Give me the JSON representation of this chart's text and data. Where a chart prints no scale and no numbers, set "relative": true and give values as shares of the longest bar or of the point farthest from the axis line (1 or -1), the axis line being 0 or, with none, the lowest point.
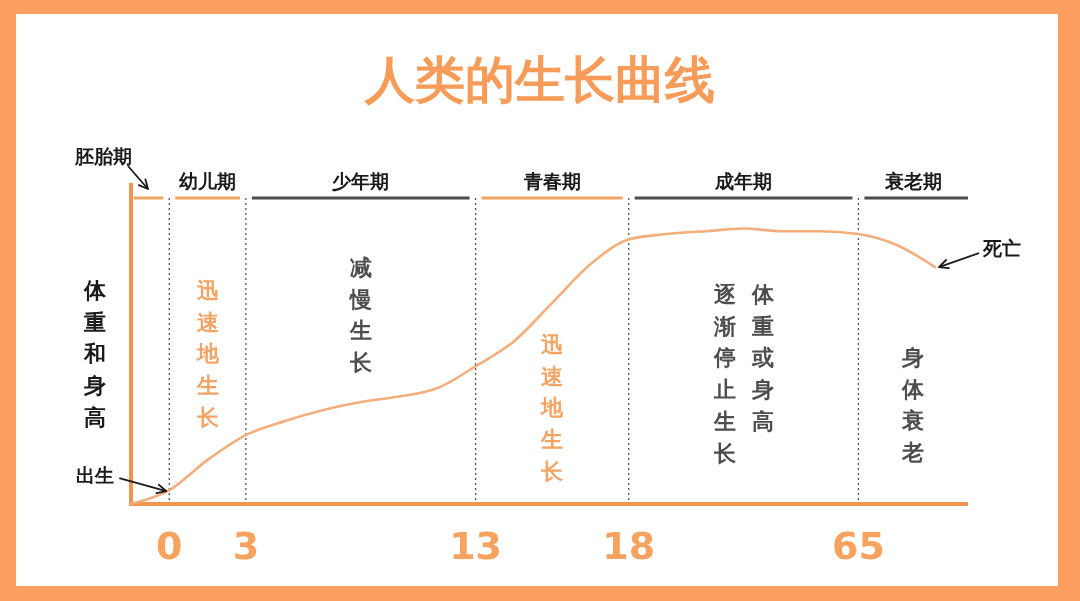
{
  "chart_data": {
    "type": "line",
    "title": "人类的生长曲线",
    "ylabel": "体重和身高",
    "relative": true,
    "categories": [
      null,
      "0",
      null,
      "3",
      null,
      null,
      null,
      null,
      null,
      "13",
      null,
      null,
      null,
      "18",
      null,
      null,
      null,
      null,
      null,
      "65",
      null,
      null
    ],
    "series": [
      {
        "color": "#f3ae7c",
        "values": [
          0,
          0.05,
          0.16,
          0.25,
          0.3,
          0.34,
          0.37,
          0.39,
          0.42,
          0.5,
          0.59,
          0.73,
          0.87,
          0.96,
          0.98,
          0.99,
          1,
          0.99,
          0.99,
          0.98,
          0.94,
          0.86
        ]
      }
    ],
    "ref_lines": [
      {
        "axis": "x",
        "value": "0",
        "color": "#555555",
        "line_style": "dotted"
      },
      {
        "axis": "x",
        "value": "3",
        "color": "#555555",
        "line_style": "dotted"
      },
      {
        "axis": "x",
        "value": "13",
        "color": "#555555",
        "line_style": "dotted"
      },
      {
        "axis": "x",
        "value": "18",
        "color": "#555555",
        "line_style": "dotted"
      },
      {
        "axis": "x",
        "value": "65",
        "color": "#555555",
        "line_style": "dotted"
      }
    ],
    "annotations": [
      "胚胎期",
      "幼儿期",
      "少年期",
      "青春期",
      "成年期",
      "衰老期",
      {
        "text": "出生",
        "x": "0",
        "y": 0.05
      },
      "死亡",
      "迅速地生长",
      "减慢生长",
      "迅速地生长",
      "逐渐停止生长",
      "体重或身高",
      "身体衰老"
    ]
  }
}
